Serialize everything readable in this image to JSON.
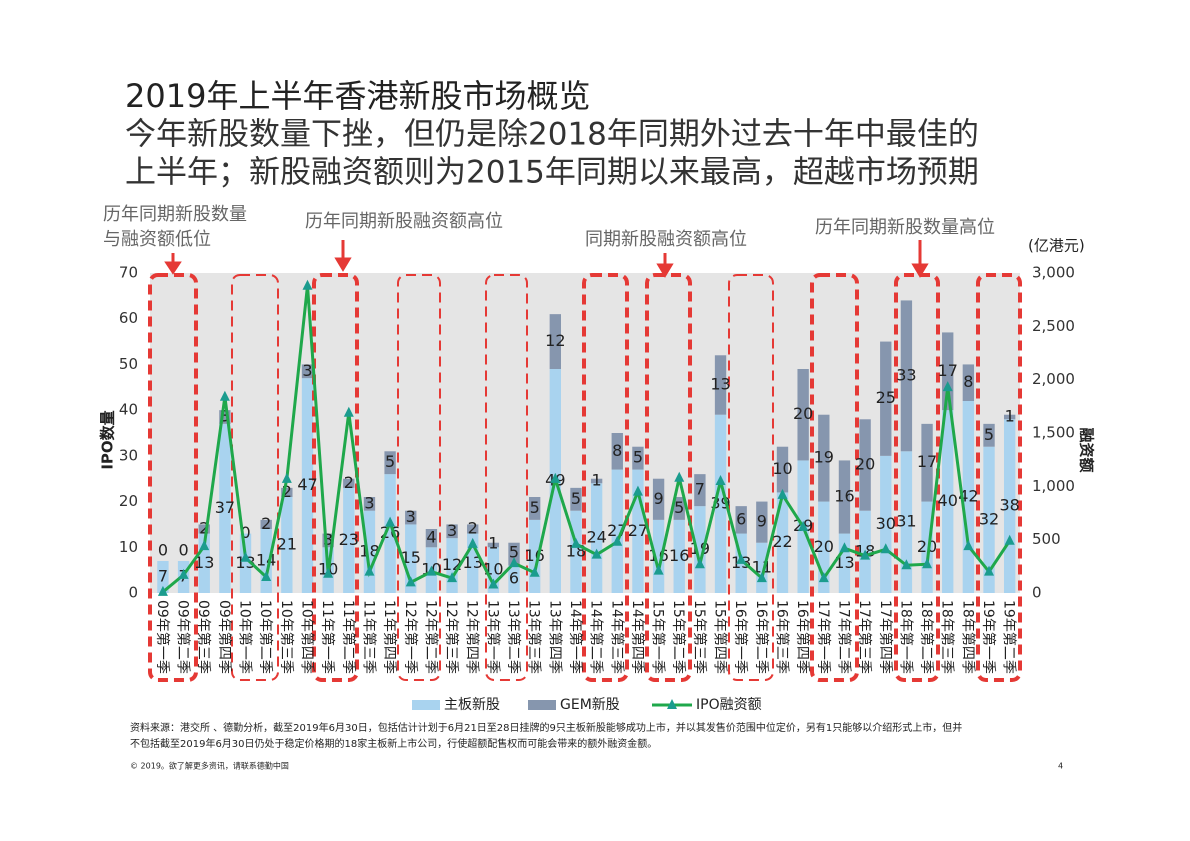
{
  "chart_data": {
    "type": "bar",
    "title": "2019年上半年香港新股市场概览",
    "subtitle": [
      "今年新股数量下挫，但仍是除2018年同期外过去十年中最佳的",
      "上半年；新股融资额则为2015年同期以来最高，超越市场预期"
    ],
    "annotations": [
      [
        "历年同期新股数量",
        "与融资额低位"
      ],
      [
        "历年同期新股融资额高位"
      ],
      [
        "同期新股融资额高位"
      ],
      [
        "历年同期新股数量高位"
      ]
    ],
    "y_label": "IPO数量",
    "y2_label": "融资额",
    "y2_unit": "(亿港元)",
    "categories": [
      "09年第一季",
      "09年第二季",
      "09年第三季",
      "09年第四季",
      "10年第一季",
      "10年第二季",
      "10年第三季",
      "10年第四季",
      "11年第一季",
      "11年第二季",
      "11年第三季",
      "11年第四季",
      "12年第一季",
      "12年第二季",
      "12年第三季",
      "12年第四季",
      "13年第一季",
      "13年第二季",
      "13年第三季",
      "13年第四季",
      "14年第一季",
      "14年第二季",
      "14年第三季",
      "14年第四季",
      "15年第一季",
      "15年第二季",
      "15年第三季",
      "15年第四季",
      "16年第一季",
      "16年第二季",
      "16年第三季",
      "16年第四季",
      "17年第一季",
      "17年第二季",
      "17年第三季",
      "17年第四季",
      "18年第一季",
      "18年第二季",
      "18年第三季",
      "18年第四季",
      "19年第一季",
      "19年第二季"
    ],
    "series": [
      {
        "name": "主板新股",
        "color": "#a9d3ef",
        "values": [
          7,
          7,
          13,
          37,
          13,
          14,
          21,
          47,
          10,
          23,
          18,
          26,
          15,
          10,
          12,
          13,
          10,
          6,
          16,
          49,
          18,
          24,
          27,
          27,
          16,
          16,
          19,
          39,
          13,
          11,
          22,
          29,
          20,
          13,
          18,
          30,
          31,
          20,
          40,
          42,
          32,
          38
        ]
      },
      {
        "name": "GEM新股",
        "color": "#8696ae",
        "values": [
          0,
          0,
          2,
          3,
          0,
          2,
          2,
          3,
          3,
          2,
          3,
          5,
          3,
          4,
          3,
          2,
          1,
          5,
          5,
          12,
          5,
          1,
          8,
          5,
          9,
          5,
          7,
          13,
          6,
          9,
          10,
          20,
          19,
          16,
          20,
          25,
          33,
          17,
          17,
          8,
          5,
          1
        ]
      },
      {
        "name": "IPO融资额",
        "color": "#1fa84b",
        "marker_color": "#1b9c8e",
        "axis": "y2",
        "values": [
          10,
          170,
          440,
          1840,
          330,
          150,
          1070,
          2880,
          180,
          1690,
          200,
          660,
          100,
          200,
          140,
          460,
          80,
          280,
          190,
          1070,
          460,
          360,
          480,
          950,
          210,
          1080,
          270,
          1050,
          310,
          140,
          920,
          620,
          140,
          420,
          350,
          410,
          260,
          270,
          1930,
          440,
          200,
          490
        ]
      }
    ],
    "ylim": [
      0,
      70
    ],
    "yticks": [
      0,
      10,
      20,
      30,
      40,
      50,
      60,
      70
    ],
    "y2lim": [
      0,
      3000
    ],
    "y2ticks": [
      0,
      500,
      {
        "value": 1000,
        "label": "1,000"
      },
      {
        "value": 1500,
        "label": "1,500"
      },
      {
        "value": 2000,
        "label": "2,000"
      },
      {
        "value": 2500,
        "label": "2,500"
      },
      {
        "value": 3000,
        "label": "3,000"
      }
    ],
    "source": [
      "资料来源：港交所 、德勤分析，截至2019年6月30日，包括估计计划于6月21日至28日挂牌的9只主板新股能够成功上市，并以其发售价范围中位定价，另有1只能够以介绍形式上市，但并",
      "不包括截至2019年6月30日仍处于稳定价格期的18家主板新上市公司，行使超额配售权而可能会带来的额外融资金额。"
    ],
    "footer": "© 2019。欲了解更多资讯，请联系德勤中国",
    "page": "4"
  }
}
